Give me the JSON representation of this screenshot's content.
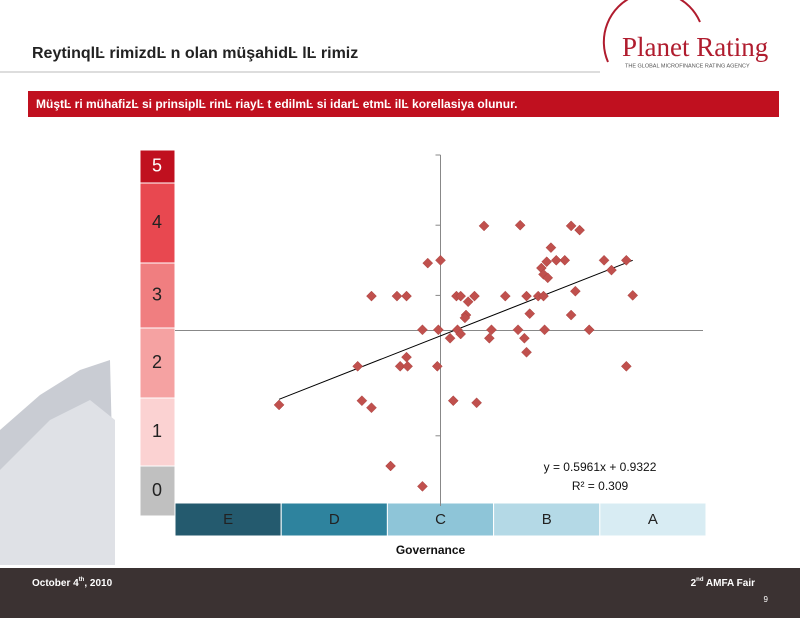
{
  "header": {
    "title": "ReytinqlĿ rimizdĿ n olan müşahidĿ lĿ rimiz",
    "logo": "Planet Rating",
    "logo_tagline": "THE GLOBAL MICROFINANCE RATING AGENCY"
  },
  "banner": "MüştĿ ri mühafizĿ si prinsiplĿ rinĿ riayĿ t edilmĿ si idarĿ etmĿ ilĿ korellasiya olunur.",
  "chart_data": {
    "type": "scatter",
    "x_label": "Governance",
    "color": "#c0504d",
    "xlim": [
      0,
      5
    ],
    "ylim": [
      0,
      5
    ],
    "yticks": [
      1,
      2,
      3,
      4,
      5
    ],
    "axis_cross": {
      "x": 2.5,
      "y": 2.5
    },
    "x": [
      2.91,
      3.25,
      3.73,
      3.81,
      3.54,
      3.67,
      3.59,
      3.5,
      3.45,
      3.47,
      3.51,
      4.04,
      4.25,
      4.11,
      2.38,
      2.5,
      1.85,
      2.09,
      2.18,
      2.65,
      2.69,
      2.82,
      3.11,
      3.31,
      3.42,
      3.47,
      3.77,
      4.31,
      2.76,
      2.74,
      2.73,
      3.34,
      3.73,
      2.33,
      2.48,
      2.66,
      2.98,
      3.23,
      3.48,
      3.9,
      2.59,
      2.69,
      2.96,
      3.29,
      3.31,
      2.18,
      2.12,
      2.19,
      1.72,
      2.47,
      4.25,
      0.98,
      1.76,
      1.85,
      2.62,
      2.84,
      2.03,
      2.33
    ],
    "values": [
      3.99,
      4.0,
      3.99,
      3.93,
      3.68,
      3.5,
      3.5,
      3.48,
      3.39,
      3.3,
      3.25,
      3.5,
      3.5,
      3.36,
      3.46,
      3.5,
      2.99,
      2.99,
      2.99,
      2.99,
      2.99,
      2.99,
      2.99,
      2.99,
      2.99,
      2.99,
      3.06,
      3.0,
      2.91,
      2.72,
      2.68,
      2.74,
      2.72,
      2.51,
      2.51,
      2.51,
      2.51,
      2.51,
      2.51,
      2.51,
      2.39,
      2.45,
      2.39,
      2.39,
      2.19,
      2.12,
      1.99,
      1.99,
      1.99,
      1.99,
      1.99,
      1.44,
      1.5,
      1.4,
      1.5,
      1.47,
      0.57,
      0.28
    ],
    "trendline": {
      "x": [
        0.98,
        4.31
      ],
      "y": [
        1.52,
        3.5
      ],
      "equation": "y = 0.5961x + 0.9322",
      "r2": "R² = 0.309"
    },
    "y_bands": [
      {
        "label": "5",
        "color": "#c0101f"
      },
      {
        "label": "4",
        "color": "#e84850"
      },
      {
        "label": "3",
        "color": "#f07e80"
      },
      {
        "label": "2",
        "color": "#f5a2a2"
      },
      {
        "label": "1",
        "color": "#fbd2d2"
      },
      {
        "label": "0",
        "color": "#c0c0c0"
      }
    ],
    "x_bands": [
      {
        "label": "E",
        "color": "#245a6e"
      },
      {
        "label": "D",
        "color": "#2e839e"
      },
      {
        "label": "C",
        "color": "#8ec5d8"
      },
      {
        "label": "B",
        "color": "#b4d9e6"
      },
      {
        "label": "A",
        "color": "#d8ecf3"
      }
    ]
  },
  "footer": {
    "date": "October 4",
    "date_sup": "th",
    "date_rest": ", 2010",
    "event_num": "2",
    "event_sup": "nd",
    "event": " AMFA Fair",
    "page": "9"
  }
}
